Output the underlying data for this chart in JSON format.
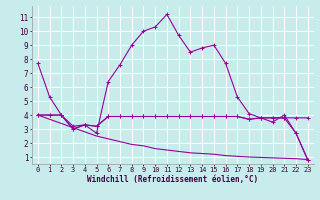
{
  "xlabel": "Windchill (Refroidissement éolien,°C)",
  "background_color": "#c8ecec",
  "grid_color": "#ffffff",
  "line_color": "#990099",
  "xlim": [
    -0.5,
    23.5
  ],
  "ylim": [
    0.5,
    11.8
  ],
  "xticks": [
    0,
    1,
    2,
    3,
    4,
    5,
    6,
    7,
    8,
    9,
    10,
    11,
    12,
    13,
    14,
    15,
    16,
    17,
    18,
    19,
    20,
    21,
    22,
    23
  ],
  "yticks": [
    1,
    2,
    3,
    4,
    5,
    6,
    7,
    8,
    9,
    10,
    11
  ],
  "series": [
    {
      "y": [
        7.7,
        5.3,
        4.0,
        3.2,
        3.3,
        2.7,
        6.4,
        7.6,
        9.0,
        10.0,
        10.3,
        11.2,
        9.7,
        8.5,
        8.8,
        9.0,
        7.7,
        5.3,
        4.1,
        3.8,
        3.5,
        4.0,
        2.7,
        0.8
      ],
      "marker": true
    },
    {
      "y": [
        4.0,
        4.0,
        4.0,
        3.0,
        3.3,
        3.2,
        3.9,
        3.9,
        3.9,
        3.9,
        3.9,
        3.9,
        3.9,
        3.9,
        3.9,
        3.9,
        3.9,
        3.9,
        3.7,
        3.8,
        3.8,
        3.8,
        3.8,
        3.8
      ],
      "marker": true
    },
    {
      "y": [
        4.0,
        4.0,
        4.0,
        3.0,
        3.3,
        3.2,
        3.9,
        3.9,
        3.9,
        3.9,
        3.9,
        3.9,
        3.9,
        3.9,
        3.9,
        3.9,
        3.9,
        3.9,
        3.7,
        3.8,
        3.8,
        3.8,
        2.7,
        0.8
      ],
      "marker": true
    },
    {
      "y": [
        4.0,
        3.7,
        3.4,
        3.1,
        2.8,
        2.5,
        2.3,
        2.1,
        1.9,
        1.8,
        1.6,
        1.5,
        1.4,
        1.3,
        1.25,
        1.2,
        1.1,
        1.05,
        1.0,
        0.97,
        0.94,
        0.91,
        0.88,
        0.82
      ],
      "marker": false
    }
  ]
}
